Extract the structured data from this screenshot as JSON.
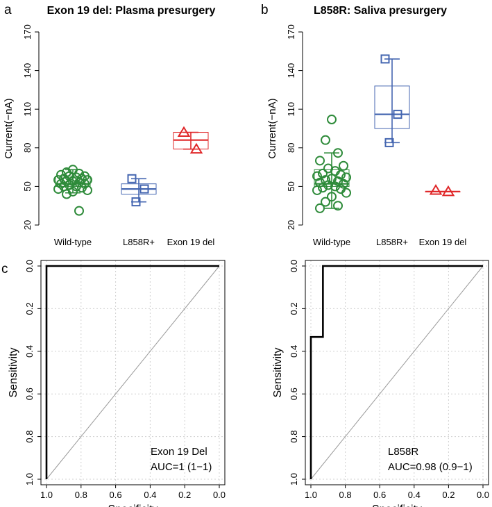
{
  "panel_letters": {
    "a": "a",
    "b": "b",
    "c": "c"
  },
  "colors": {
    "wild_type": "#2e8b3a",
    "l858r": "#4466b0",
    "exon19": "#e0282a",
    "roc": "#000000",
    "diagonal": "#9a9a9a",
    "grid": "#d0d0d0"
  },
  "chart_data": [
    {
      "type": "box",
      "title": "Exon 19 del: Plasma presurgery",
      "ylabel": "Current(−nA)",
      "ylim": [
        20,
        170
      ],
      "yticks": [
        20,
        50,
        80,
        110,
        140,
        170
      ],
      "categories": [
        "Wild-type",
        "L858R+",
        "Exon 19 del"
      ],
      "groups": [
        {
          "name": "Wild-type",
          "marker": "circle",
          "color": "#2e8b3a",
          "box": {
            "whisker_low": 45,
            "q1": 50,
            "median": 52,
            "q3": 58,
            "whisker_high": 63
          },
          "points": [
            63,
            61,
            60,
            59,
            58,
            58,
            57,
            56,
            56,
            55,
            55,
            54,
            54,
            53,
            52,
            52,
            51,
            50,
            50,
            49,
            48,
            47,
            46,
            44,
            31
          ]
        },
        {
          "name": "L858R+",
          "marker": "square",
          "color": "#4466b0",
          "box": {
            "whisker_low": 38,
            "q1": 44,
            "median": 48,
            "q3": 52,
            "whisker_high": 56
          },
          "points": [
            56,
            48,
            38
          ]
        },
        {
          "name": "Exon 19 del",
          "marker": "triangle",
          "color": "#e0282a",
          "box": {
            "whisker_low": 79,
            "q1": 79,
            "median": 86,
            "q3": 92,
            "whisker_high": 92
          },
          "points": [
            92,
            79
          ]
        }
      ]
    },
    {
      "type": "box",
      "title": "L858R: Saliva presurgery",
      "ylabel": "Current(−nA)",
      "ylim": [
        20,
        170
      ],
      "yticks": [
        20,
        50,
        80,
        110,
        140,
        170
      ],
      "categories": [
        "Wild-type",
        "L858R+",
        "Exon 19 del"
      ],
      "groups": [
        {
          "name": "Wild-type",
          "marker": "circle",
          "color": "#2e8b3a",
          "box": {
            "whisker_low": 33,
            "q1": 50,
            "median": 52,
            "q3": 63,
            "whisker_high": 76
          },
          "points": [
            102,
            86,
            76,
            70,
            66,
            64,
            62,
            60,
            59,
            58,
            57,
            56,
            55,
            54,
            53,
            52,
            51,
            50,
            49,
            48,
            47,
            45,
            42,
            38,
            35,
            33
          ]
        },
        {
          "name": "L858R+",
          "marker": "square",
          "color": "#4466b0",
          "box": {
            "whisker_low": 84,
            "q1": 95,
            "median": 106,
            "q3": 128,
            "whisker_high": 149
          },
          "points": [
            149,
            106,
            84
          ]
        },
        {
          "name": "Exon 19 del",
          "marker": "triangle",
          "color": "#e0282a",
          "box": {
            "whisker_low": 46,
            "q1": 46,
            "median": 46,
            "q3": 46,
            "whisker_high": 46
          },
          "points": [
            47,
            46
          ]
        }
      ]
    },
    {
      "type": "line",
      "subtype": "roc",
      "xlabel": "Specificity",
      "ylabel": "Sensitivity",
      "xlim": [
        1.0,
        0.0
      ],
      "ylim": [
        0.0,
        1.0
      ],
      "ticks": [
        1.0,
        0.8,
        0.6,
        0.4,
        0.2,
        0.0
      ],
      "tick_labels": [
        "1.0",
        "0.8",
        "0.6",
        "0.4",
        "0.2",
        "0.0"
      ],
      "x": [
        1.0,
        1.0,
        0.0
      ],
      "y": [
        0.0,
        1.0,
        1.0
      ],
      "annotation": [
        "Exon 19 Del",
        "AUC=1 (1−1)"
      ]
    },
    {
      "type": "line",
      "subtype": "roc",
      "xlabel": "Specificity",
      "ylabel": "Sensitivity",
      "xlim": [
        1.0,
        0.0
      ],
      "ylim": [
        0.0,
        1.0
      ],
      "ticks": [
        1.0,
        0.8,
        0.6,
        0.4,
        0.2,
        0.0
      ],
      "tick_labels": [
        "1.0",
        "0.8",
        "0.6",
        "0.4",
        "0.2",
        "0.0"
      ],
      "x": [
        1.0,
        1.0,
        0.93,
        0.93,
        0.0
      ],
      "y": [
        0.0,
        0.667,
        0.667,
        1.0,
        1.0
      ],
      "annotation": [
        "L858R",
        "AUC=0.98 (0.9−1)"
      ]
    }
  ]
}
